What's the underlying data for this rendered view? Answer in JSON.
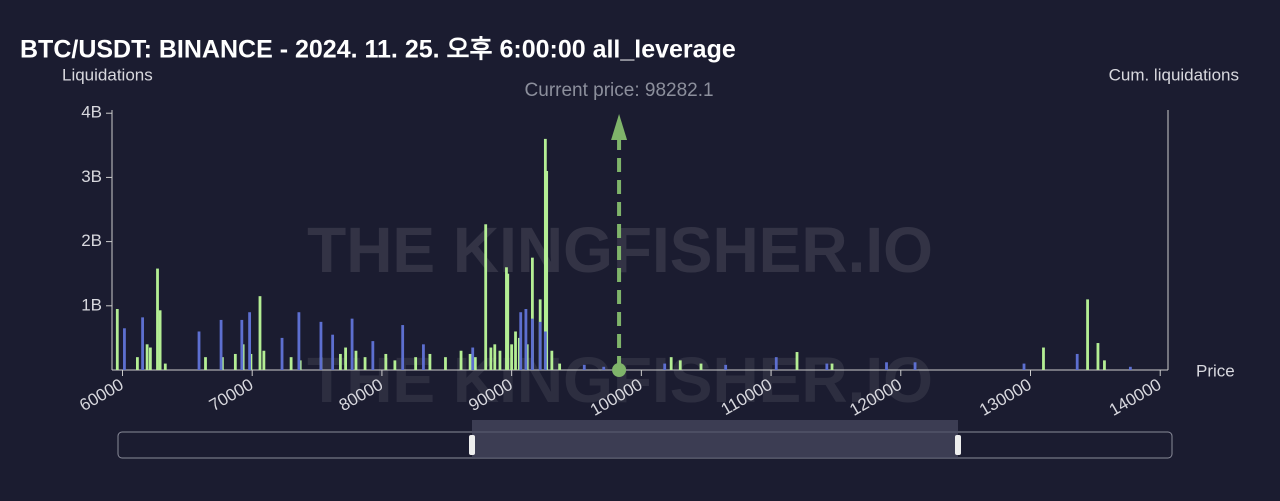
{
  "chart_data": {
    "type": "bar",
    "title": "BTC/USDT: BINANCE - 2024. 11. 25. 오후 6:00:00 all_leverage",
    "y_label": "Liquidations",
    "y2_label": "Cum. liquidations",
    "x_label": "Price",
    "watermark": "THE KINGFISHER.IO",
    "annotation": {
      "label": "Current price: 98282.1",
      "value": 98282.1,
      "color": "#7fb46a"
    },
    "xlim": [
      59500,
      140600
    ],
    "xticks": [
      60000,
      70000,
      80000,
      90000,
      100000,
      110000,
      120000,
      130000,
      140000
    ],
    "ylim": [
      0,
      4050000000
    ],
    "yticks": [
      {
        "value": 1000000000,
        "label": "1B"
      },
      {
        "value": 2000000000,
        "label": "2B"
      },
      {
        "value": 3000000000,
        "label": "3B"
      },
      {
        "value": 4000000000,
        "label": "4B"
      }
    ],
    "series": [
      {
        "color": "#b4ee94",
        "x": [
          59600,
          61150,
          61900,
          62150,
          62700,
          62900,
          63300,
          66400,
          67700,
          68700,
          69300,
          69900,
          70600,
          70900,
          73000,
          73700,
          75300,
          76800,
          77200,
          78000,
          78700,
          80300,
          81000,
          82600,
          83700,
          84900,
          86100,
          86800,
          87200,
          88000,
          88400,
          88700,
          89100,
          89600,
          89700,
          90000,
          90300,
          90600,
          91200,
          91600,
          92200,
          92600,
          92700,
          93100,
          93700,
          102300,
          103000,
          104600,
          112000,
          114700,
          131000,
          134400,
          135200,
          135700
        ],
        "values": [
          950000000,
          200000000,
          400000000,
          350000000,
          1580000000,
          930000000,
          100000000,
          200000000,
          200000000,
          250000000,
          400000000,
          250000000,
          1150000000,
          300000000,
          200000000,
          150000000,
          200000000,
          250000000,
          350000000,
          300000000,
          200000000,
          250000000,
          150000000,
          200000000,
          250000000,
          200000000,
          300000000,
          250000000,
          200000000,
          2270000000,
          350000000,
          400000000,
          300000000,
          1600000000,
          1500000000,
          400000000,
          600000000,
          500000000,
          400000000,
          1750000000,
          1100000000,
          3600000000,
          3100000000,
          300000000,
          100000000,
          200000000,
          150000000,
          100000000,
          280000000,
          100000000,
          350000000,
          1100000000,
          420000000,
          150000000
        ]
      },
      {
        "color": "#5d6fd0",
        "x": [
          60150,
          61550,
          65900,
          67600,
          69200,
          69800,
          72300,
          73600,
          75300,
          76200,
          77700,
          79300,
          81600,
          83200,
          87000,
          90700,
          91100,
          91600,
          92200,
          92600,
          95600,
          97100,
          101800,
          106500,
          110400,
          114300,
          118900,
          121100,
          129500,
          133600,
          137700
        ],
        "values": [
          650000000,
          820000000,
          600000000,
          780000000,
          780000000,
          900000000,
          500000000,
          900000000,
          750000000,
          550000000,
          800000000,
          450000000,
          700000000,
          400000000,
          350000000,
          900000000,
          950000000,
          800000000,
          750000000,
          600000000,
          80000000,
          50000000,
          100000000,
          80000000,
          200000000,
          100000000,
          120000000,
          120000000,
          100000000,
          250000000,
          50000000
        ]
      }
    ]
  }
}
